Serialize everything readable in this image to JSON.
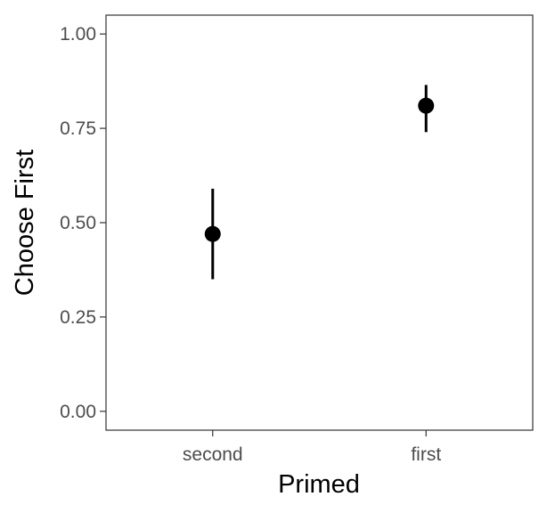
{
  "chart_data": {
    "type": "scatter",
    "title": "",
    "xlabel": "Primed",
    "ylabel": "Choose First",
    "categories": [
      "second",
      "first"
    ],
    "series": [
      {
        "values": [
          0.47,
          0.81
        ],
        "error_low": [
          0.35,
          0.74
        ],
        "error_high": [
          0.59,
          0.865
        ]
      }
    ],
    "ylim": [
      -0.05,
      1.05
    ],
    "yticks": [
      0,
      0.25,
      0.5,
      0.75,
      1.0
    ],
    "ytick_labels": [
      "0.00",
      "0.25",
      "0.50",
      "0.75",
      "1.00"
    ],
    "grid": false,
    "legend": "none",
    "colors": {
      "point": "#000000",
      "panel_border": "#333333",
      "tick_text": "#4d4d4d"
    }
  }
}
